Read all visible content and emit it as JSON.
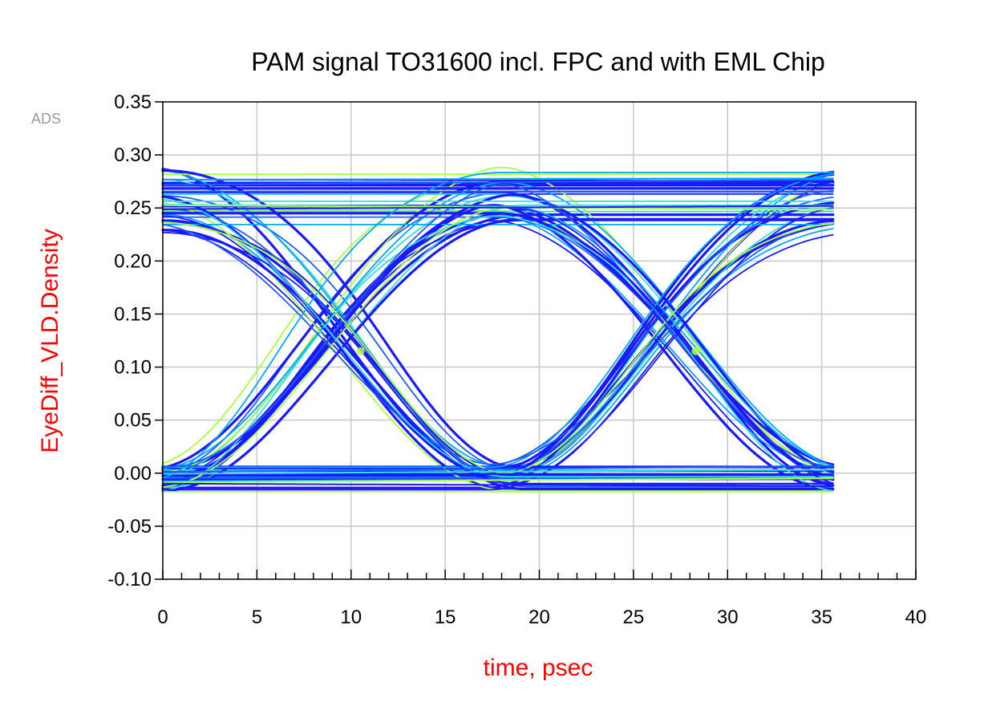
{
  "chart_data": {
    "type": "eye_diagram",
    "title": "PAM signal TO31600 incl. FPC and with EML Chip",
    "xlabel": "time, psec",
    "ylabel": "EyeDiff_VLD.Density",
    "watermark": "ADS",
    "xlim": [
      0,
      40
    ],
    "ylim": [
      -0.1,
      0.35
    ],
    "xticks": [
      0,
      5,
      10,
      15,
      20,
      25,
      30,
      35,
      40
    ],
    "yticks": [
      -0.1,
      -0.05,
      0.0,
      0.05,
      0.1,
      0.15,
      0.2,
      0.25,
      0.3,
      0.35
    ],
    "x_minor_step": 1,
    "grid": true,
    "trace_x_range": [
      0,
      35.7
    ],
    "levels": {
      "low": 0.0,
      "high": 0.25
    },
    "level_spread": {
      "low": [
        -0.03,
        0.015
      ],
      "high": [
        0.22,
        0.295
      ]
    },
    "eye_crossings": [
      {
        "x": 10.5,
        "y": 0.115
      },
      {
        "x": 28.3,
        "y": 0.115
      }
    ],
    "transition_edges_x": [
      1.2,
      19.0
    ],
    "transition_width_ps": 19.0,
    "density_colors": [
      "#1a1aff",
      "#1f5bff",
      "#00a7ff",
      "#33dddd",
      "#aaff44"
    ]
  }
}
